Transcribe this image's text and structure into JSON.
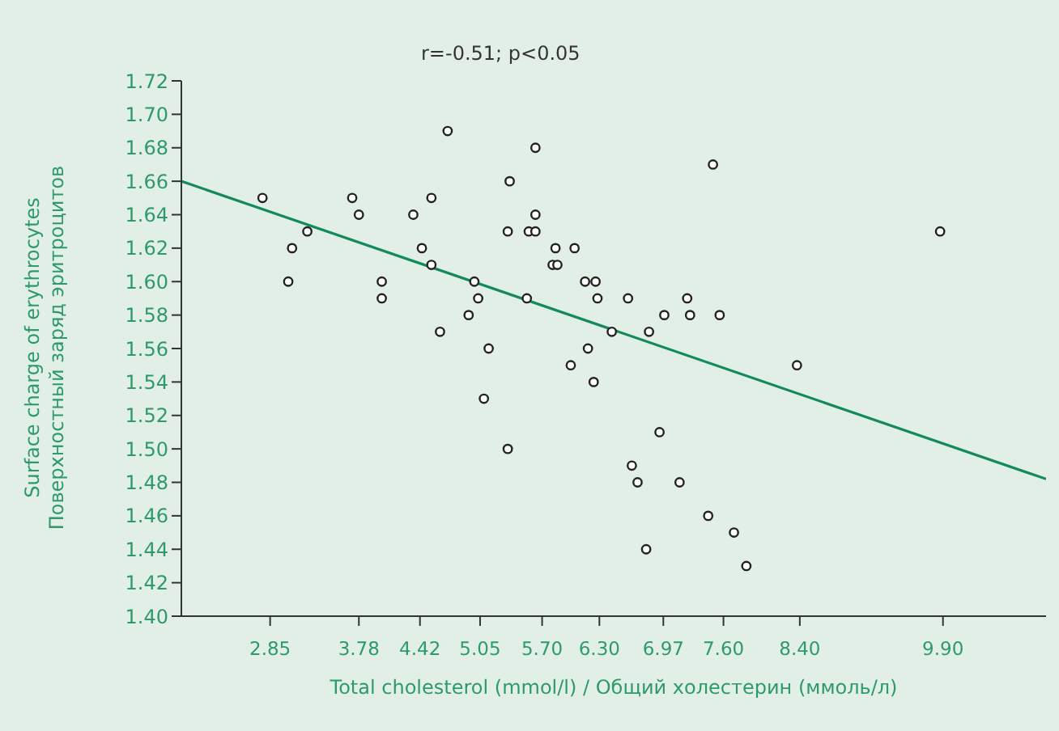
{
  "chart_data": {
    "type": "scatter",
    "xlabel": "Total cholesterol (mmol/l) / Общий холестерин (ммоль/л)",
    "ylabel": "Surface charge of erythrocytes\nПоверхностный заряд эритроцитов",
    "annotations": [
      "r=-0.51; p<0.05"
    ],
    "xlim": [
      1.92,
      10.98
    ],
    "xticks": [
      2.85,
      3.78,
      4.42,
      5.05,
      {
        "value": 5.7,
        "label": "5.70"
      },
      {
        "value": 6.3,
        "label": "6.30"
      },
      6.97,
      {
        "value": 7.6,
        "label": "7.60"
      },
      {
        "value": 8.4,
        "label": "8.40"
      },
      {
        "value": 9.9,
        "label": "9.90"
      }
    ],
    "ylim": [
      1.4,
      1.72
    ],
    "yticks": [
      {
        "value": 1.4,
        "label": "1.40"
      },
      1.42,
      1.44,
      1.46,
      1.48,
      {
        "value": 1.5,
        "label": "1.50"
      },
      1.52,
      1.54,
      1.56,
      1.58,
      {
        "value": 1.6,
        "label": "1.60"
      },
      1.62,
      1.64,
      1.66,
      1.68,
      {
        "value": 1.7,
        "label": "1.70"
      },
      1.72
    ],
    "series": [
      {
        "marker": "circle",
        "color": "#222222",
        "x": [
          2.77,
          3.08,
          3.04,
          3.24,
          3.71,
          3.78,
          4.02,
          4.02,
          4.35,
          4.44,
          4.54,
          4.54,
          4.71,
          4.63,
          4.93,
          4.99,
          5.03,
          5.14,
          5.36,
          5.34,
          5.54,
          5.56,
          5.63,
          5.63,
          5.63,
          5.84,
          5.81,
          5.86,
          6.04,
          6.15,
          6.26,
          6.28,
          6.43,
          6.18,
          6.0,
          7.49,
          9.87,
          6.6,
          7.22,
          6.98,
          7.25,
          7.56,
          6.82,
          8.37,
          5.09,
          5.34,
          6.24,
          6.93,
          6.64,
          6.7,
          7.14,
          6.79,
          7.44,
          7.71,
          7.84
        ],
        "values": [
          1.65,
          1.62,
          1.6,
          1.63,
          1.65,
          1.64,
          1.6,
          1.59,
          1.64,
          1.62,
          1.65,
          1.61,
          1.69,
          1.57,
          1.58,
          1.6,
          1.59,
          1.56,
          1.66,
          1.63,
          1.59,
          1.63,
          1.63,
          1.68,
          1.64,
          1.62,
          1.61,
          1.61,
          1.62,
          1.6,
          1.6,
          1.59,
          1.57,
          1.56,
          1.55,
          1.67,
          1.63,
          1.59,
          1.59,
          1.58,
          1.58,
          1.58,
          1.57,
          1.55,
          1.53,
          1.5,
          1.54,
          1.51,
          1.49,
          1.48,
          1.48,
          1.44,
          1.46,
          1.45,
          1.43
        ]
      },
      {
        "type": "line",
        "marker": "none",
        "color": "#138a5a",
        "x": [
          1.92,
          10.98
        ],
        "values": [
          1.66,
          1.482
        ]
      }
    ]
  }
}
